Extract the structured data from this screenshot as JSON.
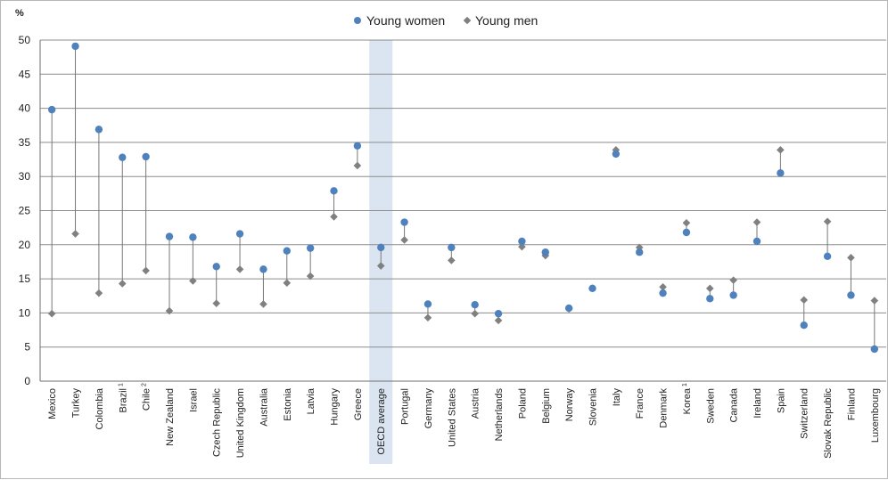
{
  "chart_data": {
    "type": "scatter",
    "ylabel": "%",
    "ylim": [
      0,
      50
    ],
    "yticks": [
      0,
      5,
      10,
      15,
      20,
      25,
      30,
      35,
      40,
      45,
      50
    ],
    "grid": true,
    "legend_position": "top-center",
    "highlight_category": "OECD average",
    "colors": {
      "women": "#4f81bd",
      "men": "#808080",
      "highlight": "#dbe5f1",
      "grid": "#8c8c8c",
      "connector": "#777777"
    },
    "categories": [
      {
        "label": "Mexico",
        "sup": ""
      },
      {
        "label": "Turkey",
        "sup": ""
      },
      {
        "label": "Colombia",
        "sup": ""
      },
      {
        "label": "Brazil",
        "sup": "1"
      },
      {
        "label": "Chile",
        "sup": "2"
      },
      {
        "label": "New Zealand",
        "sup": ""
      },
      {
        "label": "Israel",
        "sup": ""
      },
      {
        "label": "Czech Republic",
        "sup": ""
      },
      {
        "label": "United Kingdom",
        "sup": ""
      },
      {
        "label": "Australia",
        "sup": ""
      },
      {
        "label": "Estonia",
        "sup": ""
      },
      {
        "label": "Latvia",
        "sup": ""
      },
      {
        "label": "Hungary",
        "sup": ""
      },
      {
        "label": "Greece",
        "sup": ""
      },
      {
        "label": "OECD average",
        "sup": ""
      },
      {
        "label": "Portugal",
        "sup": ""
      },
      {
        "label": "Germany",
        "sup": ""
      },
      {
        "label": "United States",
        "sup": ""
      },
      {
        "label": "Austria",
        "sup": ""
      },
      {
        "label": "Netherlands",
        "sup": ""
      },
      {
        "label": "Poland",
        "sup": ""
      },
      {
        "label": "Belgium",
        "sup": ""
      },
      {
        "label": "Norway",
        "sup": ""
      },
      {
        "label": "Slovenia",
        "sup": ""
      },
      {
        "label": "Italy",
        "sup": ""
      },
      {
        "label": "France",
        "sup": ""
      },
      {
        "label": "Denmark",
        "sup": ""
      },
      {
        "label": "Korea",
        "sup": "1"
      },
      {
        "label": "Sweden",
        "sup": ""
      },
      {
        "label": "Canada",
        "sup": ""
      },
      {
        "label": "Ireland",
        "sup": ""
      },
      {
        "label": "Spain",
        "sup": ""
      },
      {
        "label": "Switzerland",
        "sup": ""
      },
      {
        "label": "Slovak Republic",
        "sup": ""
      },
      {
        "label": "Finland",
        "sup": ""
      },
      {
        "label": "Luxembourg",
        "sup": ""
      }
    ],
    "series": [
      {
        "name": "Young women",
        "marker": "circle",
        "values": [
          39.8,
          49.1,
          36.9,
          32.8,
          32.9,
          21.2,
          21.1,
          16.8,
          21.6,
          16.4,
          19.1,
          19.5,
          27.9,
          34.5,
          19.6,
          23.3,
          11.3,
          19.6,
          11.2,
          9.9,
          20.5,
          18.9,
          10.7,
          13.6,
          33.3,
          18.9,
          12.9,
          21.8,
          12.1,
          12.6,
          20.5,
          30.5,
          8.2,
          18.3,
          12.6,
          4.7
        ]
      },
      {
        "name": "Young men",
        "marker": "diamond",
        "values": [
          9.9,
          21.6,
          12.9,
          14.3,
          16.2,
          10.3,
          14.7,
          11.4,
          16.4,
          11.3,
          14.4,
          15.4,
          24.1,
          31.6,
          16.9,
          20.7,
          9.3,
          17.7,
          9.9,
          8.9,
          19.7,
          18.4,
          10.6,
          13.6,
          33.9,
          19.6,
          13.8,
          23.2,
          13.6,
          14.8,
          23.3,
          33.9,
          11.9,
          23.4,
          18.1,
          11.8
        ]
      }
    ]
  }
}
